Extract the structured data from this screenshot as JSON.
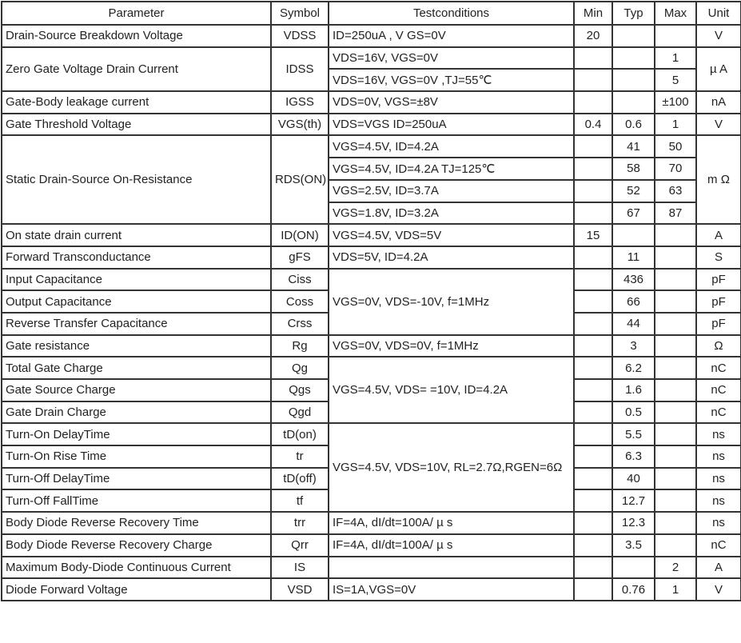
{
  "headers": [
    "Parameter",
    "Symbol",
    "Testconditions",
    "Min",
    "Typ",
    "Max",
    "Unit"
  ],
  "parameters": [
    {
      "parameter": "Drain-Source Breakdown Voltage",
      "symbol": "VDSS",
      "unit": "V",
      "conditions": [
        {
          "test": "ID=250uA , V GS=0V",
          "min": "20",
          "typ": "",
          "max": ""
        }
      ]
    },
    {
      "parameter": "Zero Gate Voltage Drain Current",
      "symbol": "IDSS",
      "unit": "µ A",
      "conditions": [
        {
          "test": "VDS=16V, VGS=0V",
          "min": "",
          "typ": "",
          "max": "1"
        },
        {
          "test": "VDS=16V, VGS=0V ,TJ=55℃",
          "min": "",
          "typ": "",
          "max": "5"
        }
      ]
    },
    {
      "parameter": "Gate-Body leakage current",
      "symbol": "IGSS",
      "unit": "nA",
      "conditions": [
        {
          "test": "VDS=0V, VGS=±8V",
          "min": "",
          "typ": "",
          "max": "±100"
        }
      ]
    },
    {
      "parameter": "Gate Threshold Voltage",
      "symbol": "VGS(th)",
      "unit": "V",
      "conditions": [
        {
          "test": "VDS=VGS ID=250uA",
          "min": "0.4",
          "typ": "0.6",
          "max": "1"
        }
      ]
    },
    {
      "parameter": "Static Drain-Source On-Resistance",
      "symbol": "RDS(ON)",
      "unit": "m Ω",
      "conditions": [
        {
          "test": "VGS=4.5V, ID=4.2A",
          "min": "",
          "typ": "41",
          "max": "50"
        },
        {
          "test": "VGS=4.5V, ID=4.2A      TJ=125℃",
          "min": "",
          "typ": "58",
          "max": "70"
        },
        {
          "test": "VGS=2.5V, ID=3.7A",
          "min": "",
          "typ": "52",
          "max": "63"
        },
        {
          "test": "VGS=1.8V, ID=3.2A",
          "min": "",
          "typ": "67",
          "max": "87"
        }
      ]
    },
    {
      "parameter": "On state drain current",
      "symbol": "ID(ON)",
      "unit": "A",
      "conditions": [
        {
          "test": "VGS=4.5V, VDS=5V",
          "min": "15",
          "typ": "",
          "max": ""
        }
      ]
    },
    {
      "parameter": "Forward Transconductance",
      "symbol": "gFS",
      "unit": "S",
      "conditions": [
        {
          "test": "VDS=5V, ID=4.2A",
          "min": "",
          "typ": "11",
          "max": ""
        }
      ]
    },
    {
      "parameter": "Input Capacitance",
      "symbol": "Ciss",
      "unit": "pF",
      "conditions": [
        {
          "test": "VGS=0V, VDS=-10V, f=1MHz",
          "min": "",
          "typ": "436",
          "max": ""
        }
      ]
    },
    {
      "parameter": "Output Capacitance",
      "symbol": "Coss",
      "unit": "pF",
      "conditions": [
        {
          "test": null,
          "min": "",
          "typ": "66",
          "max": ""
        }
      ]
    },
    {
      "parameter": "Reverse Transfer Capacitance",
      "symbol": "Crss",
      "unit": "pF",
      "conditions": [
        {
          "test": null,
          "min": "",
          "typ": "44",
          "max": ""
        }
      ]
    },
    {
      "parameter": "Gate resistance",
      "symbol": "Rg",
      "unit": "Ω",
      "conditions": [
        {
          "test": "VGS=0V, VDS=0V, f=1MHz",
          "min": "",
          "typ": "3",
          "max": ""
        }
      ]
    },
    {
      "parameter": "Total Gate Charge",
      "symbol": "Qg",
      "unit": "nC",
      "conditions": [
        {
          "test": "VGS=4.5V, VDS= =10V, ID=4.2A",
          "min": "",
          "typ": "6.2",
          "max": ""
        }
      ]
    },
    {
      "parameter": "Gate Source Charge",
      "symbol": "Qgs",
      "unit": "nC",
      "conditions": [
        {
          "test": null,
          "min": "",
          "typ": "1.6",
          "max": ""
        }
      ]
    },
    {
      "parameter": "Gate Drain Charge",
      "symbol": "Qgd",
      "unit": "nC",
      "conditions": [
        {
          "test": null,
          "min": "",
          "typ": "0.5",
          "max": ""
        }
      ]
    },
    {
      "parameter": "Turn-On DelayTime",
      "symbol": "tD(on)",
      "unit": "ns",
      "conditions": [
        {
          "test": "VGS=4.5V, VDS=10V, RL=2.7Ω,RGEN=6Ω",
          "min": "",
          "typ": "5.5",
          "max": ""
        }
      ]
    },
    {
      "parameter": "Turn-On Rise Time",
      "symbol": "tr",
      "unit": "ns",
      "conditions": [
        {
          "test": null,
          "min": "",
          "typ": "6.3",
          "max": ""
        }
      ]
    },
    {
      "parameter": "Turn-Off DelayTime",
      "symbol": "tD(off)",
      "unit": "ns",
      "conditions": [
        {
          "test": null,
          "min": "",
          "typ": "40",
          "max": ""
        }
      ]
    },
    {
      "parameter": "Turn-Off FallTime",
      "symbol": "tf",
      "unit": "ns",
      "conditions": [
        {
          "test": null,
          "min": "",
          "typ": "12.7",
          "max": ""
        }
      ]
    },
    {
      "parameter": "Body Diode Reverse Recovery Time",
      "symbol": "trr",
      "unit": "ns",
      "conditions": [
        {
          "test": "IF=4A, dI/dt=100A/ µ s",
          "min": "",
          "typ": "12.3",
          "max": ""
        }
      ]
    },
    {
      "parameter": "Body Diode Reverse Recovery Charge",
      "symbol": "Qrr",
      "unit": "nC",
      "conditions": [
        {
          "test": "IF=4A, dI/dt=100A/ µ s",
          "min": "",
          "typ": "3.5",
          "max": ""
        }
      ]
    },
    {
      "parameter": "Maximum Body-Diode Continuous Current",
      "symbol": "IS",
      "unit": "A",
      "conditions": [
        {
          "test": "",
          "min": "",
          "typ": "",
          "max": "2"
        }
      ]
    },
    {
      "parameter": "Diode Forward Voltage",
      "symbol": "VSD",
      "unit": "V",
      "conditions": [
        {
          "test": "IS=1A,VGS=0V",
          "min": "",
          "typ": "0.76",
          "max": "1"
        }
      ]
    }
  ]
}
